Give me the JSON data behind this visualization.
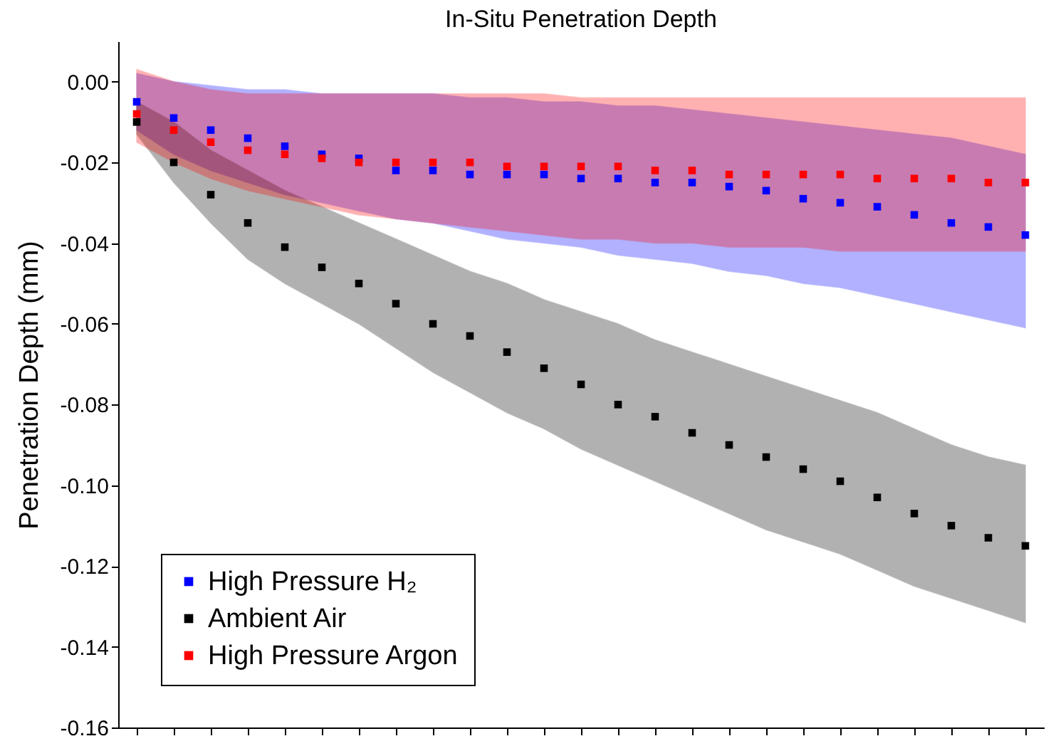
{
  "chart_data": {
    "type": "scatter",
    "title": "In-Situ Penetration Depth",
    "ylabel": "Penetration Depth (mm)",
    "categories": [
      null,
      null,
      null,
      null,
      null,
      null,
      null,
      null,
      null,
      null,
      null,
      null,
      null,
      null,
      null,
      null,
      null,
      null,
      null,
      null,
      null,
      null,
      null,
      null,
      null
    ],
    "series": [
      {
        "name": "High Pressure H₂",
        "color": "#0000ff",
        "values": [
          -0.005,
          -0.009,
          -0.012,
          -0.014,
          -0.016,
          -0.018,
          -0.019,
          -0.022,
          -0.022,
          -0.023,
          -0.023,
          -0.023,
          -0.024,
          -0.024,
          -0.025,
          -0.025,
          -0.026,
          -0.027,
          -0.029,
          -0.03,
          -0.031,
          -0.033,
          -0.035,
          -0.036,
          -0.038
        ],
        "upper": [
          0.002,
          0.0,
          -0.001,
          -0.002,
          -0.002,
          -0.003,
          -0.003,
          -0.003,
          -0.003,
          -0.004,
          -0.004,
          -0.005,
          -0.005,
          -0.006,
          -0.006,
          -0.007,
          -0.008,
          -0.009,
          -0.01,
          -0.011,
          -0.012,
          -0.013,
          -0.014,
          -0.016,
          -0.018
        ],
        "lower": [
          -0.012,
          -0.018,
          -0.022,
          -0.025,
          -0.028,
          -0.03,
          -0.032,
          -0.034,
          -0.035,
          -0.037,
          -0.039,
          -0.04,
          -0.041,
          -0.043,
          -0.044,
          -0.045,
          -0.047,
          -0.048,
          -0.05,
          -0.051,
          -0.053,
          -0.055,
          -0.057,
          -0.059,
          -0.061
        ]
      },
      {
        "name": "Ambient Air",
        "color": "#000000",
        "values": [
          -0.01,
          -0.02,
          -0.028,
          -0.035,
          -0.041,
          -0.046,
          -0.05,
          -0.055,
          -0.06,
          -0.063,
          -0.067,
          -0.071,
          -0.075,
          -0.08,
          -0.083,
          -0.087,
          -0.09,
          -0.093,
          -0.096,
          -0.099,
          -0.103,
          -0.107,
          -0.11,
          -0.113,
          -0.115
        ],
        "upper": [
          -0.005,
          -0.01,
          -0.017,
          -0.022,
          -0.027,
          -0.031,
          -0.035,
          -0.039,
          -0.043,
          -0.047,
          -0.05,
          -0.054,
          -0.057,
          -0.06,
          -0.064,
          -0.067,
          -0.07,
          -0.073,
          -0.076,
          -0.079,
          -0.082,
          -0.086,
          -0.09,
          -0.093,
          -0.095
        ],
        "lower": [
          -0.013,
          -0.025,
          -0.035,
          -0.044,
          -0.05,
          -0.055,
          -0.06,
          -0.066,
          -0.072,
          -0.077,
          -0.082,
          -0.086,
          -0.091,
          -0.095,
          -0.099,
          -0.103,
          -0.107,
          -0.111,
          -0.114,
          -0.117,
          -0.121,
          -0.125,
          -0.128,
          -0.131,
          -0.134
        ]
      },
      {
        "name": "High Pressure Argon",
        "color": "#ff0000",
        "values": [
          -0.008,
          -0.012,
          -0.015,
          -0.017,
          -0.018,
          -0.019,
          -0.02,
          -0.02,
          -0.02,
          -0.02,
          -0.021,
          -0.021,
          -0.021,
          -0.021,
          -0.022,
          -0.022,
          -0.023,
          -0.023,
          -0.023,
          -0.023,
          -0.024,
          -0.024,
          -0.024,
          -0.025,
          -0.025
        ],
        "upper": [
          0.003,
          0.0,
          -0.002,
          -0.003,
          -0.003,
          -0.003,
          -0.003,
          -0.003,
          -0.003,
          -0.003,
          -0.003,
          -0.003,
          -0.004,
          -0.004,
          -0.004,
          -0.004,
          -0.004,
          -0.004,
          -0.004,
          -0.004,
          -0.004,
          -0.004,
          -0.004,
          -0.004,
          -0.004
        ],
        "lower": [
          -0.015,
          -0.02,
          -0.024,
          -0.027,
          -0.029,
          -0.031,
          -0.033,
          -0.034,
          -0.035,
          -0.036,
          -0.037,
          -0.038,
          -0.039,
          -0.039,
          -0.04,
          -0.04,
          -0.041,
          -0.041,
          -0.041,
          -0.042,
          -0.042,
          -0.042,
          -0.042,
          -0.042,
          -0.042
        ]
      }
    ],
    "ylim": [
      -0.16,
      0.01
    ],
    "yticks": [
      {
        "value": 0,
        "label": "0.00"
      },
      -0.02,
      -0.04,
      -0.06,
      -0.08,
      {
        "value": -0.1,
        "label": "-0.10"
      },
      -0.12,
      -0.14,
      -0.16
    ],
    "legend": "bottom left",
    "marker": "square",
    "tick_labels": "y"
  }
}
